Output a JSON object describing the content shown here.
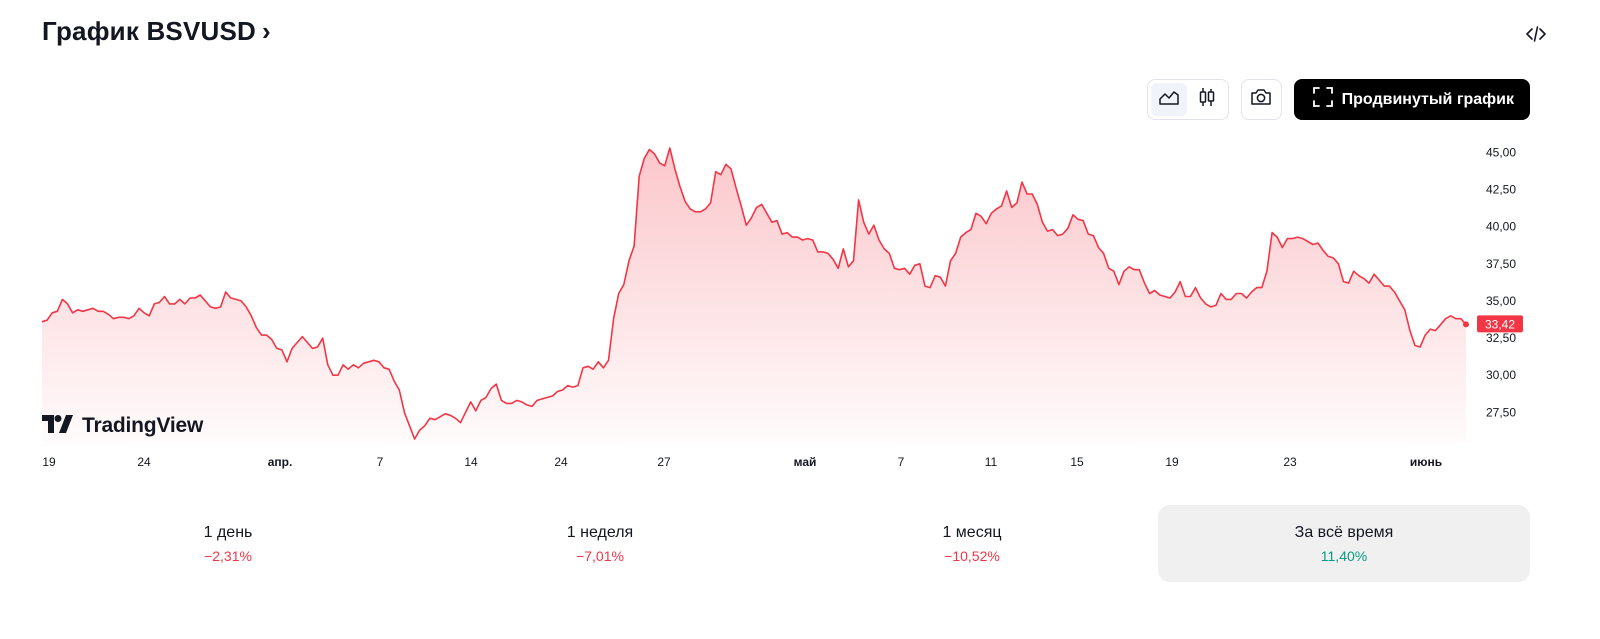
{
  "header": {
    "title": "График BSVUSD",
    "chevron": "›"
  },
  "toolbar": {
    "area_icon": "area-chart-icon",
    "candles_icon": "candlestick-icon",
    "camera_icon": "camera-icon",
    "advanced_label": "Продвинутый график"
  },
  "logo": {
    "text": "TradingView"
  },
  "colors": {
    "line": "#f23645",
    "positive": "#089981",
    "negative": "#f23645"
  },
  "chart_data": {
    "type": "area",
    "symbol": "BSVUSD",
    "x_tick_labels": [
      "19",
      "24",
      "апр.",
      "7",
      "14",
      "24",
      "27",
      "май",
      "7",
      "11",
      "15",
      "19",
      "23",
      "июнь"
    ],
    "bold_tick_labels": [
      "апр.",
      "май",
      "июнь"
    ],
    "y_ticks": [
      "45,00",
      "42,50",
      "40,00",
      "37,50",
      "35,00",
      "32,50",
      "30,00",
      "27,50"
    ],
    "ylim": [
      25.5,
      45.5
    ],
    "last_price": 33.42,
    "last_price_label": "33,42",
    "legend": "none",
    "grid": false,
    "values": [
      33.6,
      33.7,
      34.2,
      34.3,
      35.1,
      34.8,
      34.2,
      34.4,
      34.3,
      34.4,
      34.5,
      34.3,
      34.3,
      34.1,
      33.8,
      33.9,
      33.9,
      33.8,
      34.0,
      34.5,
      34.2,
      34.0,
      34.8,
      34.9,
      35.3,
      34.8,
      34.8,
      35.1,
      34.8,
      35.2,
      35.2,
      35.4,
      35.0,
      34.6,
      34.5,
      34.6,
      35.6,
      35.2,
      35.1,
      35.0,
      34.6,
      34.0,
      33.2,
      32.7,
      32.7,
      32.4,
      31.8,
      31.7,
      30.9,
      31.8,
      32.2,
      32.6,
      32.2,
      31.8,
      31.9,
      32.5,
      30.7,
      30.0,
      30.0,
      30.7,
      30.4,
      30.7,
      30.5,
      30.8,
      30.9,
      31.0,
      30.9,
      30.5,
      30.4,
      29.6,
      29.0,
      27.5,
      26.6,
      25.7,
      26.3,
      26.6,
      27.1,
      27.0,
      27.2,
      27.4,
      27.3,
      27.1,
      26.8,
      27.5,
      28.2,
      27.6,
      28.3,
      28.5,
      29.1,
      29.4,
      28.3,
      28.1,
      28.1,
      28.3,
      28.2,
      28.0,
      27.9,
      28.3,
      28.4,
      28.5,
      28.6,
      28.9,
      29.0,
      29.3,
      29.2,
      29.3,
      30.5,
      30.6,
      30.4,
      30.9,
      30.5,
      31.0,
      33.8,
      35.5,
      36.1,
      37.7,
      38.7,
      43.4,
      44.6,
      45.2,
      44.9,
      44.3,
      44.1,
      45.3,
      43.9,
      42.7,
      41.7,
      41.2,
      41.0,
      41.0,
      41.2,
      41.6,
      43.7,
      43.5,
      44.2,
      43.9,
      42.6,
      41.4,
      40.1,
      40.6,
      41.3,
      41.5,
      40.9,
      40.3,
      40.4,
      39.5,
      39.6,
      39.3,
      39.3,
      39.1,
      39.2,
      39.1,
      38.3,
      38.3,
      38.2,
      37.8,
      37.2,
      38.5,
      37.3,
      37.7,
      41.8,
      40.3,
      39.5,
      40.1,
      39.1,
      38.5,
      38.2,
      37.2,
      37.1,
      37.2,
      36.8,
      37.4,
      37.5,
      36.0,
      35.9,
      36.7,
      36.6,
      36.0,
      37.7,
      38.2,
      39.3,
      39.6,
      39.8,
      40.9,
      40.7,
      40.2,
      40.9,
      41.2,
      41.4,
      42.4,
      41.3,
      41.6,
      43.0,
      42.2,
      42.2,
      41.5,
      40.3,
      39.7,
      39.8,
      39.4,
      39.5,
      39.9,
      40.8,
      40.5,
      40.4,
      39.5,
      39.4,
      38.6,
      38.2,
      37.2,
      37.0,
      36.1,
      37.0,
      37.3,
      37.1,
      37.1,
      36.2,
      35.5,
      35.7,
      35.4,
      35.3,
      35.2,
      35.6,
      36.3,
      35.3,
      35.3,
      35.9,
      35.2,
      34.8,
      34.6,
      34.7,
      35.5,
      35.1,
      35.1,
      35.5,
      35.5,
      35.2,
      35.6,
      35.9,
      35.9,
      37.0,
      39.6,
      39.3,
      38.6,
      39.2,
      39.2,
      39.3,
      39.2,
      39.0,
      38.8,
      38.9,
      38.4,
      38.0,
      37.9,
      37.5,
      36.3,
      36.2,
      37.0,
      36.7,
      36.5,
      36.2,
      36.8,
      36.4,
      36.0,
      36.0,
      35.6,
      35.0,
      34.4,
      33.0,
      32.0,
      31.9,
      32.7,
      33.1,
      33.0,
      33.4,
      33.8,
      34.0,
      33.8,
      33.8,
      33.4
    ]
  },
  "periods": [
    {
      "label": "1 день",
      "value": "−2,31%",
      "trend": "negative",
      "active": false
    },
    {
      "label": "1 неделя",
      "value": "−7,01%",
      "trend": "negative",
      "active": false
    },
    {
      "label": "1 месяц",
      "value": "−10,52%",
      "trend": "negative",
      "active": false
    },
    {
      "label": "За всё время",
      "value": "11,40%",
      "trend": "positive",
      "active": true
    }
  ]
}
